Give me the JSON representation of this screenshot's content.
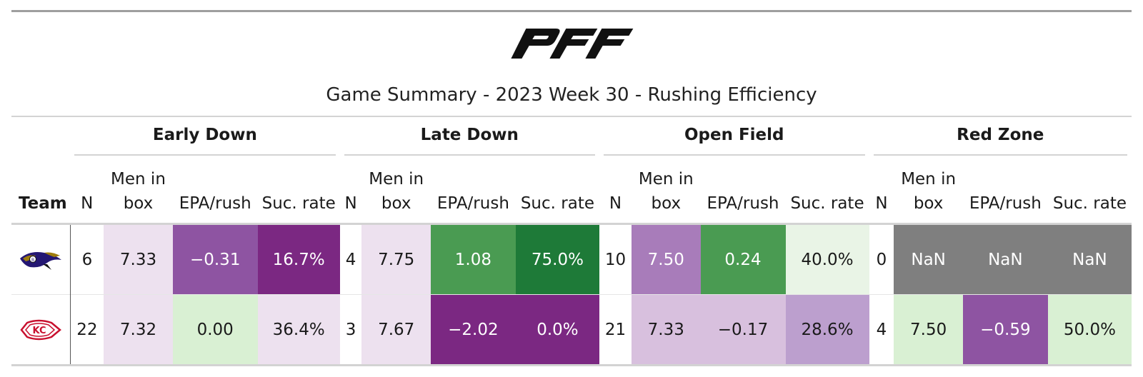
{
  "title": "Game Summary - 2023 Week 30 - Rushing Efficiency",
  "logo_text": "PFF",
  "groups": [
    "Early Down",
    "Late Down",
    "Open Field",
    "Red Zone"
  ],
  "team_header": "Team",
  "col_labels": {
    "n": "N",
    "box_line1": "Men in",
    "box_line2": "box",
    "epa": "EPA/rush",
    "suc": "Suc. rate"
  },
  "colors": {
    "deep_purple": "#7b2882",
    "mid_purple": "#8e54a2",
    "light_purple": "#a87cba",
    "lavender": "#bc9fce",
    "pale_lavender": "#d8c0de",
    "faint_lavender": "#ede1ef",
    "dark_green": "#1e7a38",
    "green": "#4a9b52",
    "pale_green": "#d9f0d3",
    "faint_green": "#e9f4e6",
    "gray_nan": "#7f7f7f"
  },
  "rows": [
    {
      "team": "BAL",
      "icon": "ravens-logo-icon",
      "cells": [
        {
          "v": "6",
          "bg": "#ffffff",
          "fg": "#1a1a1a"
        },
        {
          "v": "7.33",
          "bg": "#ede1ef",
          "fg": "#1a1a1a"
        },
        {
          "v": "−0.31",
          "bg": "#8e54a2",
          "fg": "#ffffff"
        },
        {
          "v": "16.7%",
          "bg": "#7b2882",
          "fg": "#ffffff"
        },
        {
          "v": "4",
          "bg": "#ffffff",
          "fg": "#1a1a1a"
        },
        {
          "v": "7.75",
          "bg": "#ede1ef",
          "fg": "#1a1a1a"
        },
        {
          "v": "1.08",
          "bg": "#4a9b52",
          "fg": "#ffffff"
        },
        {
          "v": "75.0%",
          "bg": "#1e7a38",
          "fg": "#ffffff"
        },
        {
          "v": "10",
          "bg": "#ffffff",
          "fg": "#1a1a1a"
        },
        {
          "v": "7.50",
          "bg": "#a87cba",
          "fg": "#ffffff"
        },
        {
          "v": "0.24",
          "bg": "#4a9b52",
          "fg": "#ffffff"
        },
        {
          "v": "40.0%",
          "bg": "#e9f4e6",
          "fg": "#1a1a1a"
        },
        {
          "v": "0",
          "bg": "#ffffff",
          "fg": "#1a1a1a"
        },
        {
          "v": "NaN",
          "bg": "#7f7f7f",
          "fg": "#ffffff"
        },
        {
          "v": "NaN",
          "bg": "#7f7f7f",
          "fg": "#ffffff"
        },
        {
          "v": "NaN",
          "bg": "#7f7f7f",
          "fg": "#ffffff"
        }
      ]
    },
    {
      "team": "KC",
      "icon": "chiefs-logo-icon",
      "cells": [
        {
          "v": "22",
          "bg": "#ffffff",
          "fg": "#1a1a1a"
        },
        {
          "v": "7.32",
          "bg": "#ede1ef",
          "fg": "#1a1a1a"
        },
        {
          "v": "0.00",
          "bg": "#d9f0d3",
          "fg": "#1a1a1a"
        },
        {
          "v": "36.4%",
          "bg": "#ede1ef",
          "fg": "#1a1a1a"
        },
        {
          "v": "3",
          "bg": "#ffffff",
          "fg": "#1a1a1a"
        },
        {
          "v": "7.67",
          "bg": "#ede1ef",
          "fg": "#1a1a1a"
        },
        {
          "v": "−2.02",
          "bg": "#7b2882",
          "fg": "#ffffff"
        },
        {
          "v": "0.0%",
          "bg": "#7b2882",
          "fg": "#ffffff"
        },
        {
          "v": "21",
          "bg": "#ffffff",
          "fg": "#1a1a1a"
        },
        {
          "v": "7.33",
          "bg": "#d8c0de",
          "fg": "#1a1a1a"
        },
        {
          "v": "−0.17",
          "bg": "#d8c0de",
          "fg": "#1a1a1a"
        },
        {
          "v": "28.6%",
          "bg": "#bc9fce",
          "fg": "#1a1a1a"
        },
        {
          "v": "4",
          "bg": "#ffffff",
          "fg": "#1a1a1a"
        },
        {
          "v": "7.50",
          "bg": "#d9f0d3",
          "fg": "#1a1a1a"
        },
        {
          "v": "−0.59",
          "bg": "#8e54a2",
          "fg": "#ffffff"
        },
        {
          "v": "50.0%",
          "bg": "#d9f0d3",
          "fg": "#1a1a1a"
        }
      ]
    }
  ]
}
